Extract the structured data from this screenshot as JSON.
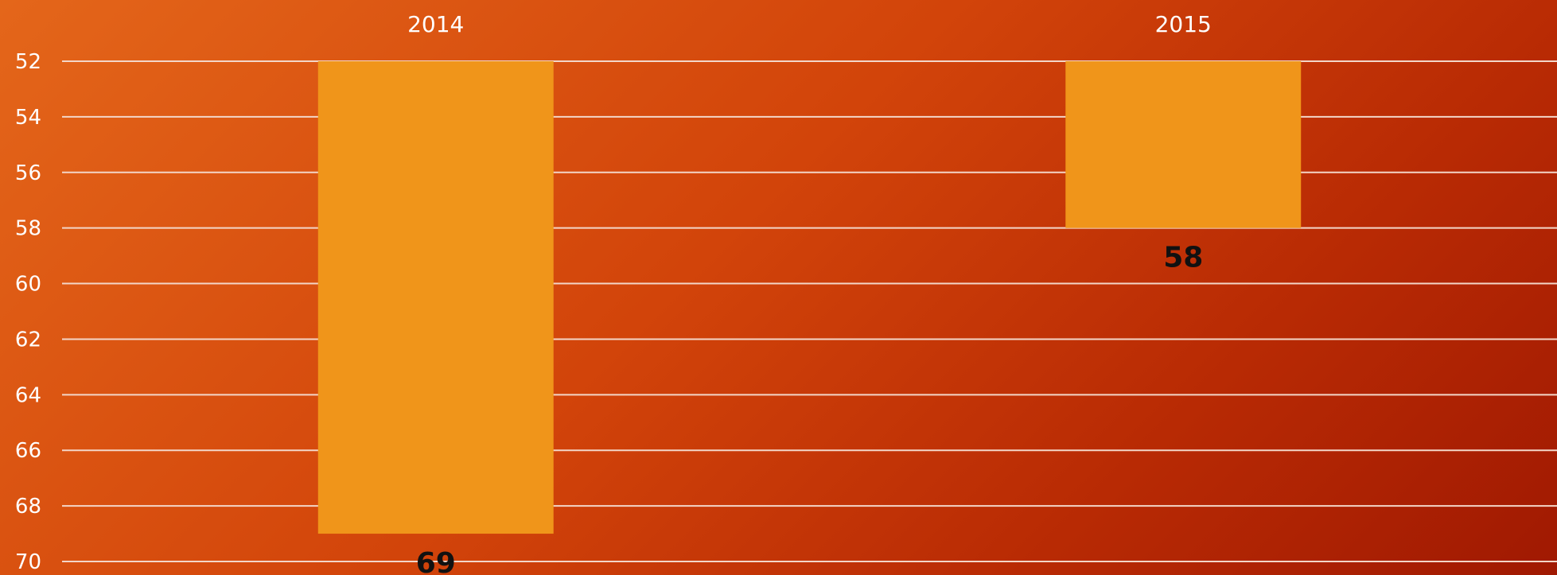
{
  "chart_data": {
    "type": "bar",
    "orientation": "vertical",
    "y_axis_inverted": true,
    "categories": [
      "2014",
      "2015"
    ],
    "values": [
      69,
      58
    ],
    "data_labels": [
      "69",
      "58"
    ],
    "category_axis_position": "top",
    "ylim": [
      52,
      70
    ],
    "y_ticks": [
      52,
      54,
      56,
      58,
      60,
      62,
      64,
      66,
      68,
      70
    ],
    "grid": true,
    "legend": "none",
    "colors": {
      "bar": "#f0951a",
      "gridline": "#f3d6c8",
      "tick_text": "#ffffff",
      "data_label_text": "#111111"
    }
  }
}
